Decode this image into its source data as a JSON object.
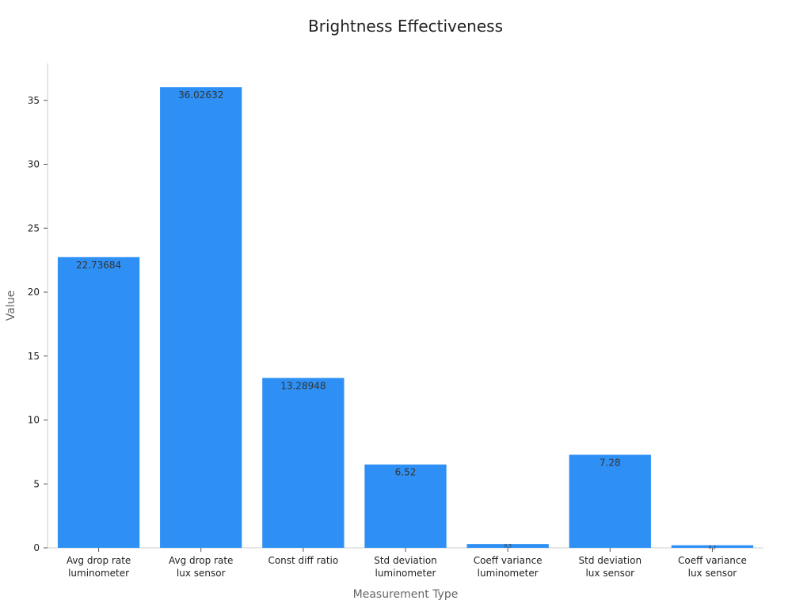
{
  "chart_data": {
    "type": "bar",
    "title": "Brightness Effectiveness",
    "xlabel": "Measurement Type",
    "ylabel": "Value",
    "categories": [
      [
        "Avg drop rate",
        "luminometer"
      ],
      [
        "Avg drop rate",
        "lux sensor"
      ],
      [
        "Const diff ratio"
      ],
      [
        "Std deviation",
        "luminometer"
      ],
      [
        "Coeff variance",
        "luminometer"
      ],
      [
        "Std deviation",
        "lux sensor"
      ],
      [
        "Coeff variance",
        "lux sensor"
      ]
    ],
    "values": [
      22.73684,
      36.02632,
      13.28948,
      6.52,
      0.3,
      7.28,
      0.2
    ],
    "data_labels": [
      "22.73684",
      "36.02632",
      "13.28948",
      "6.52",
      "0.3",
      "7.28",
      "0.2"
    ],
    "ylim": [
      0,
      37.5
    ],
    "yticks": [
      0,
      5,
      10,
      15,
      20,
      25,
      30,
      35
    ],
    "bar_color": "#2e90f5",
    "grid": false,
    "legend": "none"
  }
}
